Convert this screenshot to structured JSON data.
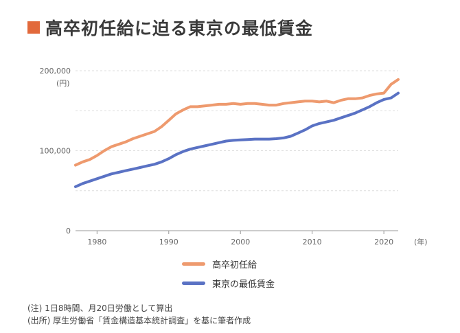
{
  "title": "高卒初任給に迫る東京の最低賃金",
  "colors": {
    "accent": "#E2693B",
    "series_starting_salary": "#EE9A6E",
    "series_min_wage": "#5A72C4",
    "grid": "#dddddd"
  },
  "chart_data": {
    "type": "line",
    "title": "高卒初任給に迫る東京の最低賃金",
    "ylabel": "(円)",
    "xlabel": "(年)",
    "xlim": [
      1977,
      2022
    ],
    "ylim": [
      0,
      200000
    ],
    "x_ticks": [
      "1980",
      "1990",
      "2000",
      "2010",
      "2020"
    ],
    "y_ticks": [
      "0",
      "100,000",
      "200,000"
    ],
    "grid": true,
    "legend_position": "bottom",
    "series": [
      {
        "name": "高卒初任給",
        "x": [
          1977,
          1978,
          1979,
          1980,
          1981,
          1982,
          1983,
          1984,
          1985,
          1986,
          1987,
          1988,
          1989,
          1990,
          1991,
          1992,
          1993,
          1994,
          1995,
          1996,
          1997,
          1998,
          1999,
          2000,
          2001,
          2002,
          2003,
          2004,
          2005,
          2006,
          2007,
          2008,
          2009,
          2010,
          2011,
          2012,
          2013,
          2014,
          2015,
          2016,
          2017,
          2018,
          2019,
          2020,
          2021,
          2022
        ],
        "y": [
          82000,
          86000,
          89000,
          94000,
          100000,
          105000,
          108000,
          111000,
          115000,
          118000,
          121000,
          124000,
          130000,
          138000,
          146000,
          151000,
          155000,
          155000,
          156000,
          157000,
          158000,
          158000,
          159000,
          158000,
          159000,
          159000,
          158000,
          157000,
          157000,
          159000,
          160000,
          161000,
          162000,
          162000,
          161000,
          162000,
          160000,
          163000,
          165000,
          165000,
          166000,
          169000,
          171000,
          172000,
          183000,
          189000
        ]
      },
      {
        "name": "東京の最低賃金",
        "x": [
          1977,
          1978,
          1979,
          1980,
          1981,
          1982,
          1983,
          1984,
          1985,
          1986,
          1987,
          1988,
          1989,
          1990,
          1991,
          1992,
          1993,
          1994,
          1995,
          1996,
          1997,
          1998,
          1999,
          2000,
          2001,
          2002,
          2003,
          2004,
          2005,
          2006,
          2007,
          2008,
          2009,
          2010,
          2011,
          2012,
          2013,
          2014,
          2015,
          2016,
          2017,
          2018,
          2019,
          2020,
          2021,
          2022
        ],
        "y": [
          55000,
          59000,
          62000,
          65000,
          68000,
          71000,
          73000,
          75000,
          77000,
          79000,
          81000,
          83000,
          86000,
          90000,
          95000,
          99000,
          102000,
          104000,
          106000,
          108000,
          110000,
          112000,
          113000,
          113500,
          114000,
          114500,
          114500,
          114500,
          115000,
          116000,
          118000,
          122000,
          126000,
          131000,
          134000,
          136000,
          138000,
          141000,
          144000,
          147000,
          151000,
          155000,
          160000,
          164000,
          166000,
          172000
        ]
      }
    ]
  },
  "notes": [
    "(注) 1日8時間、月20日労働として算出",
    "(出所) 厚生労働省「賃金構造基本統計調査」を基に筆者作成"
  ]
}
